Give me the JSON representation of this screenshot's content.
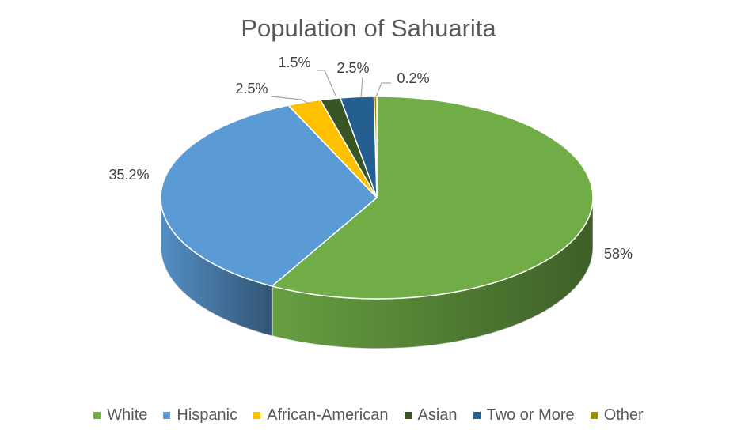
{
  "chart_data": {
    "type": "pie",
    "style": "3d",
    "title": "Population of Sahuarita",
    "legend_position": "bottom",
    "slices": [
      {
        "label": "White",
        "value": 58,
        "display": "58%",
        "color": "#70ad47"
      },
      {
        "label": "Hispanic",
        "value": 35.2,
        "display": "35.2%",
        "color": "#5b9bd5"
      },
      {
        "label": "African-American",
        "value": 2.5,
        "display": "2.5%",
        "color": "#ffc000"
      },
      {
        "label": "Asian",
        "value": 1.5,
        "display": "1.5%",
        "color": "#375623"
      },
      {
        "label": "Two or More",
        "value": 2.5,
        "display": "2.5%",
        "color": "#255e91"
      },
      {
        "label": "Other",
        "value": 0.2,
        "display": "0.2%",
        "color": "#9e8a00"
      }
    ]
  }
}
